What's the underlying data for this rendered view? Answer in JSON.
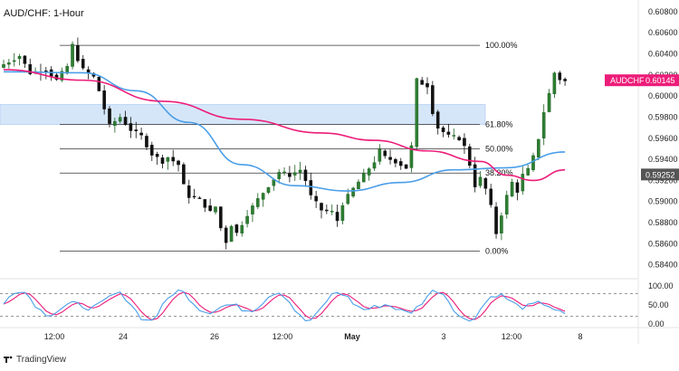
{
  "chart_data": {
    "type": "candlestick",
    "title": "AUD/CHF: 1-Hour",
    "symbol": "AUDCHF",
    "last_price": "0.60145",
    "marked_price": "0.59252",
    "y_axis_labels": [
      "0.60800",
      "0.60600",
      "0.60400",
      "0.60200",
      "0.60000",
      "0.59800",
      "0.59600",
      "0.59400",
      "0.59200",
      "0.59000",
      "0.58800",
      "0.58600",
      "0.58400"
    ],
    "ylim": [
      0.5832,
      0.6085
    ],
    "x_axis_labels": [
      "12:00",
      "24",
      "26",
      "12:00",
      "May",
      "3",
      "12:00",
      "8"
    ],
    "bold_x_labels": [
      "May"
    ],
    "fibonacci": [
      {
        "label": "100.00%",
        "price": 0.6048
      },
      {
        "label": "61.80%",
        "price": 0.5973
      },
      {
        "label": "50.00%",
        "price": 0.595
      },
      {
        "label": "38.20%",
        "price": 0.5927
      },
      {
        "label": "0.00%",
        "price": 0.5853
      }
    ],
    "resistance_zone": [
      0.5973,
      0.5992
    ],
    "close_path": [
      [
        0,
        0.603
      ],
      [
        3,
        0.6038
      ],
      [
        5,
        0.6022
      ],
      [
        8,
        0.6025
      ],
      [
        10,
        0.6015
      ],
      [
        12,
        0.6028
      ],
      [
        13,
        0.6048
      ],
      [
        14,
        0.6035
      ],
      [
        15,
        0.6025
      ],
      [
        17,
        0.6018
      ],
      [
        18,
        0.6005
      ],
      [
        19,
        0.5988
      ],
      [
        20,
        0.5972
      ],
      [
        22,
        0.598
      ],
      [
        24,
        0.5968
      ],
      [
        26,
        0.5962
      ],
      [
        28,
        0.5945
      ],
      [
        30,
        0.5938
      ],
      [
        31,
        0.5942
      ],
      [
        33,
        0.5935
      ],
      [
        34,
        0.5915
      ],
      [
        35,
        0.5905
      ],
      [
        37,
        0.5902
      ],
      [
        39,
        0.589
      ],
      [
        40,
        0.5895
      ],
      [
        41,
        0.5875
      ],
      [
        42,
        0.5862
      ],
      [
        43,
        0.5878
      ],
      [
        44,
        0.587
      ],
      [
        46,
        0.5888
      ],
      [
        48,
        0.5902
      ],
      [
        50,
        0.5915
      ],
      [
        52,
        0.5928
      ],
      [
        54,
        0.5925
      ],
      [
        56,
        0.593
      ],
      [
        57,
        0.592
      ],
      [
        58,
        0.5905
      ],
      [
        60,
        0.5892
      ],
      [
        62,
        0.589
      ],
      [
        63,
        0.5882
      ],
      [
        64,
        0.5898
      ],
      [
        66,
        0.5912
      ],
      [
        68,
        0.5925
      ],
      [
        70,
        0.5938
      ],
      [
        71,
        0.5948
      ],
      [
        72,
        0.5942
      ],
      [
        74,
        0.5938
      ],
      [
        76,
        0.5932
      ],
      [
        77,
        0.5952
      ],
      [
        78,
        0.6015
      ],
      [
        79,
        0.6012
      ],
      [
        80,
        0.601
      ],
      [
        81,
        0.5985
      ],
      [
        82,
        0.597
      ],
      [
        84,
        0.5962
      ],
      [
        86,
        0.596
      ],
      [
        87,
        0.5952
      ],
      [
        88,
        0.5935
      ],
      [
        89,
        0.5915
      ],
      [
        90,
        0.5922
      ],
      [
        91,
        0.5912
      ],
      [
        92,
        0.5895
      ],
      [
        93,
        0.587
      ],
      [
        94,
        0.5888
      ],
      [
        95,
        0.5905
      ],
      [
        96,
        0.5918
      ],
      [
        97,
        0.591
      ],
      [
        98,
        0.5925
      ],
      [
        99,
        0.593
      ],
      [
        100,
        0.5942
      ],
      [
        101,
        0.596
      ],
      [
        102,
        0.5985
      ],
      [
        103,
        0.6002
      ],
      [
        104,
        0.6022
      ],
      [
        105,
        0.6016
      ],
      [
        106,
        0.6014
      ]
    ],
    "ma_blue": [
      [
        0,
        0.6023
      ],
      [
        15,
        0.6022
      ],
      [
        25,
        0.6005
      ],
      [
        35,
        0.5975
      ],
      [
        45,
        0.5935
      ],
      [
        55,
        0.5915
      ],
      [
        65,
        0.591
      ],
      [
        75,
        0.5918
      ],
      [
        85,
        0.593
      ],
      [
        95,
        0.5932
      ],
      [
        106,
        0.5947
      ]
    ],
    "ma_pink": [
      [
        0,
        0.6025
      ],
      [
        15,
        0.6015
      ],
      [
        30,
        0.5995
      ],
      [
        45,
        0.5978
      ],
      [
        60,
        0.5965
      ],
      [
        70,
        0.5958
      ],
      [
        80,
        0.5948
      ],
      [
        90,
        0.5938
      ],
      [
        95,
        0.5925
      ],
      [
        100,
        0.592
      ],
      [
        106,
        0.593
      ]
    ],
    "stochastic": {
      "y_axis_labels": [
        "100.00",
        "50.00",
        "0.00"
      ],
      "upper_level": 80,
      "lower_level": 20
    },
    "grid": false,
    "colors": {
      "up": "#1b5e20",
      "down": "#111111",
      "ma_blue": "#4a9ee8",
      "ma_pink": "#ec1d79",
      "zone": "#d6e6f9",
      "stoch_k": "#4a9ee8",
      "stoch_d": "#ec1d79",
      "tag_pink": "#ec1d79",
      "tag_gray": "#555555"
    }
  },
  "brand": "TradingView"
}
